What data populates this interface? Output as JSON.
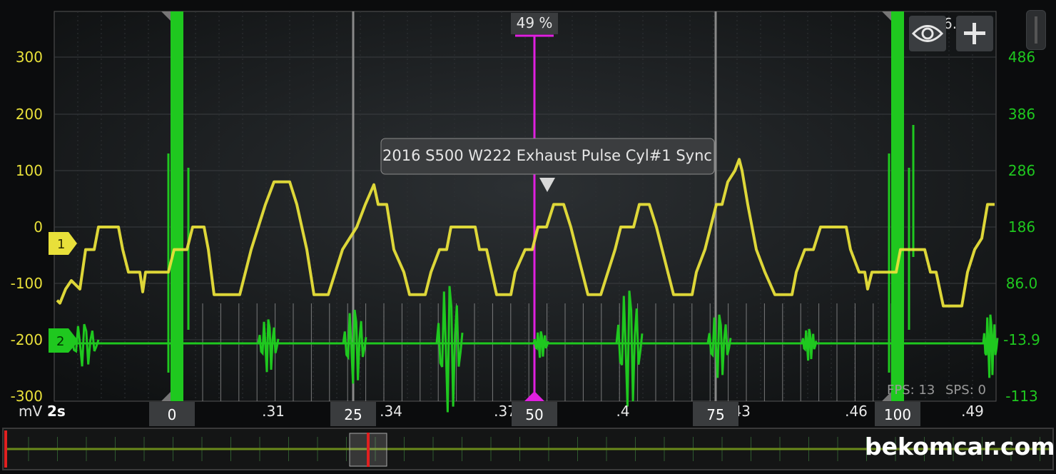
{
  "chart_data": {
    "type": "line",
    "title": "2016 S500 W222 Exhaust Pulse Cyl#1 Sync",
    "unit": "mV",
    "timebase": "2s",
    "y_left_ticks": [
      "300",
      "200",
      "100",
      "0",
      "-100",
      "-200",
      "-300"
    ],
    "y_right_ticks": [
      "486",
      "386",
      "286",
      "186",
      "86.0",
      "-13.9",
      "-113"
    ],
    "x_tick_labels": [
      ".31",
      ".34",
      ".37",
      ".4",
      ".43",
      ".46",
      ".49"
    ],
    "cursor_markers": [
      "0",
      "25",
      "50",
      "75",
      "100"
    ],
    "cursor_percent": "49 %",
    "time_readout": "6.",
    "fps_label": "FPS: 13",
    "sps_label": "SPS: 0",
    "series": [
      {
        "channel": "1",
        "color": "#e8e03a",
        "description_values_mV": {
          "plateau_low": -120,
          "plateau_high": 0,
          "peaks": [
            80,
            75,
            40,
            40,
            40,
            120
          ]
        }
      },
      {
        "channel": "2",
        "color": "#1fc81f",
        "baseline": -13.9,
        "sync_spikes_at_percent": [
          0,
          100
        ]
      }
    ]
  },
  "colors": {
    "channel1": "#e8e03a",
    "channel2": "#1fc81f",
    "cursor": "#e020e0",
    "grid": "#3a3d40"
  },
  "icons": {
    "eye": "eye-icon",
    "plus": "plus-icon"
  },
  "watermark": "bekomcar.com"
}
